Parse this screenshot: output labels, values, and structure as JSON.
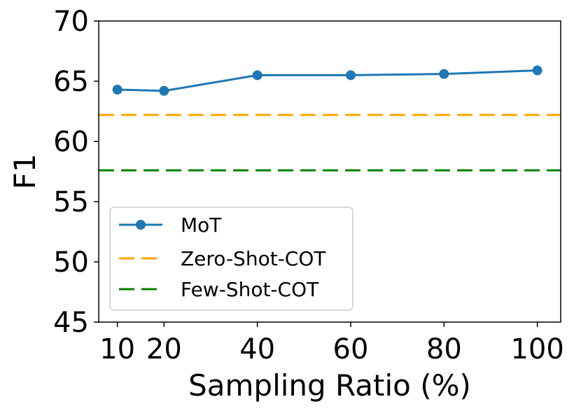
{
  "chart_data": {
    "type": "line",
    "title": "",
    "xlabel": "Sampling Ratio (%)",
    "ylabel": "F1",
    "x": [
      10,
      20,
      40,
      60,
      80,
      100
    ],
    "xticks": [
      10,
      20,
      40,
      60,
      80,
      100
    ],
    "xlim": [
      6,
      105
    ],
    "ylim": [
      45,
      70
    ],
    "yticks": [
      45,
      50,
      55,
      60,
      65,
      70
    ],
    "grid": false,
    "legend_position": "lower-left",
    "series": [
      {
        "name": "MoT",
        "values": [
          64.3,
          64.2,
          65.5,
          65.5,
          65.6,
          65.9
        ],
        "color": "#1f77b4",
        "style": "solid-marker"
      },
      {
        "name": "Zero-Shot-COT",
        "constant": 62.2,
        "color": "#ffa500",
        "style": "dashed"
      },
      {
        "name": "Few-Shot-COT",
        "constant": 57.6,
        "color": "#008000",
        "style": "dashed"
      }
    ]
  }
}
